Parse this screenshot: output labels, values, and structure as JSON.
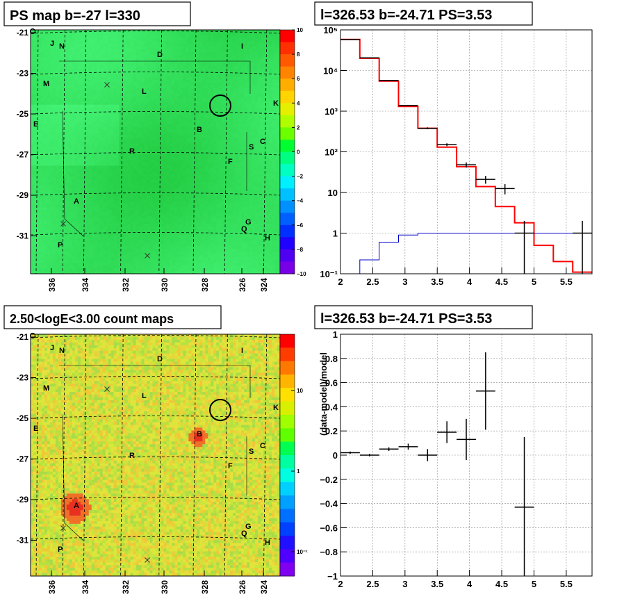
{
  "colors": {
    "map_green": "#22e65a",
    "count_yellow": "#d6e83c",
    "model_red": "#ff0000",
    "data_black": "#000000",
    "bg_blue": "#0000cc",
    "grid_gray": "#999999"
  },
  "panel_tl": {
    "title": "PS map b=-27 l=330",
    "x_ticks": [
      "336",
      "334",
      "332",
      "330",
      "328",
      "326",
      "324"
    ],
    "y_ticks": [
      "-21",
      "-23",
      "-25",
      "-27",
      "-29",
      "-31"
    ],
    "colorbar_ticks": [
      "10",
      "8",
      "6",
      "4",
      "2",
      "0",
      "−2",
      "−4",
      "−6",
      "−8",
      "−10"
    ],
    "source_labels": [
      "J",
      "N",
      "D",
      "I",
      "M",
      "L",
      "K",
      "E",
      "B",
      "S",
      "C",
      "R",
      "F",
      "A",
      "G",
      "Q",
      "H",
      "P"
    ]
  },
  "panel_bl": {
    "title": "2.50<logE<3.00 count maps",
    "x_ticks": [
      "336",
      "334",
      "332",
      "330",
      "328",
      "326",
      "324"
    ],
    "y_ticks": [
      "-21",
      "-23",
      "-25",
      "-27",
      "-29",
      "-31"
    ],
    "colorbar_ticks": [
      "10",
      "1",
      "10⁻¹"
    ]
  },
  "chart_data": [
    {
      "type": "line",
      "title": "l=326.53 b=-24.71 PS=3.53",
      "xlabel": "",
      "ylabel": "",
      "xlim": [
        2,
        5.9
      ],
      "ylim": [
        0.1,
        100000
      ],
      "y_log": true,
      "grid": true,
      "x_ticks": [
        "2",
        "2.5",
        "3",
        "3.5",
        "4",
        "4.5",
        "5",
        "5.5"
      ],
      "y_ticks": [
        "10⁻¹",
        "1",
        "10",
        "10²",
        "10³",
        "10⁴",
        "10⁵"
      ],
      "bin_edges": [
        2.0,
        2.3,
        2.6,
        2.9,
        3.2,
        3.5,
        3.8,
        4.1,
        4.4,
        4.7,
        5.0,
        5.3,
        5.6,
        5.9
      ],
      "series": [
        {
          "style": "histogram",
          "values": [
            58000,
            20000,
            5500,
            1300,
            380,
            130,
            43,
            14,
            4.5,
            1.8,
            0.5,
            0.2,
            0.11
          ]
        },
        {
          "style": "histogram",
          "values": [
            0.1,
            0.22,
            0.6,
            0.9,
            1.0,
            1.0,
            1.0,
            1.0,
            1.0,
            1.0,
            1.0,
            1.0,
            1.0
          ]
        },
        {
          "style": "errorbar",
          "x": [
            2.15,
            2.45,
            2.75,
            3.05,
            3.35,
            3.65,
            3.95,
            4.25,
            4.55,
            4.85,
            5.75
          ],
          "y": [
            58000,
            20500,
            5700,
            1380,
            380,
            150,
            48,
            21,
            12.5,
            1.0,
            1.0
          ],
          "err": [
            240,
            140,
            75,
            37,
            20,
            12,
            7,
            4.6,
            3.5,
            1.0,
            1.0
          ]
        }
      ]
    },
    {
      "type": "scatter",
      "title": "l=326.53 b=-24.71 PS=3.53",
      "xlabel": "",
      "ylabel": "(data-model)/model",
      "xlim": [
        2,
        5.9
      ],
      "ylim": [
        -1,
        1
      ],
      "grid": true,
      "x_ticks": [
        "2",
        "2.5",
        "3",
        "3.5",
        "4",
        "4.5",
        "5",
        "5.5"
      ],
      "y_ticks": [
        "−1",
        "−0.8",
        "−0.6",
        "−0.4",
        "−0.2",
        "0",
        "0.2",
        "0.4",
        "0.6",
        "0.8",
        "1"
      ],
      "series": [
        {
          "style": "errorbar",
          "x": [
            2.15,
            2.45,
            2.75,
            3.05,
            3.35,
            3.65,
            3.95,
            4.25,
            4.85
          ],
          "y": [
            0.02,
            0.0,
            0.05,
            0.07,
            0.0,
            0.19,
            0.13,
            0.53,
            -0.43
          ],
          "err": [
            0.01,
            0.01,
            0.015,
            0.025,
            0.05,
            0.09,
            0.17,
            0.32,
            0.58
          ]
        }
      ]
    }
  ]
}
